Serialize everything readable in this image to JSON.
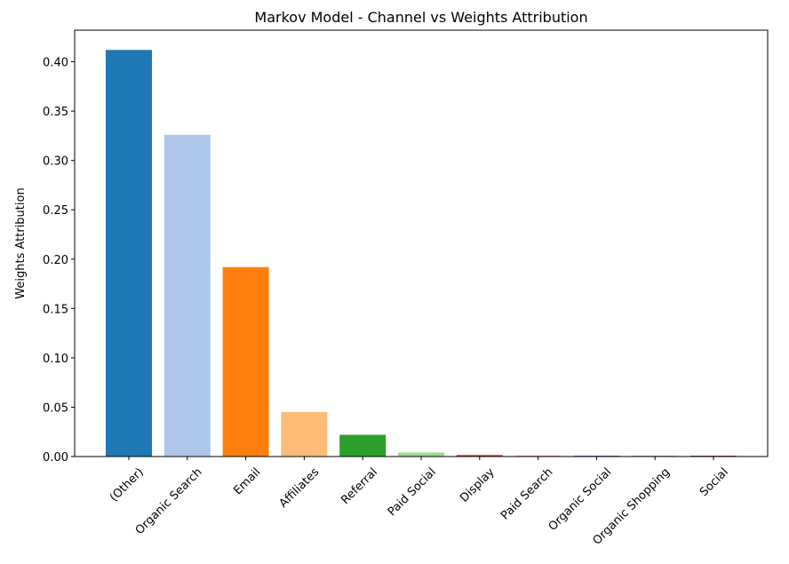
{
  "chart_data": {
    "type": "bar",
    "title": "Markov Model - Channel vs Weights Attribution",
    "xlabel": "",
    "ylabel": "Weights Attribution",
    "categories": [
      "(Other)",
      "Organic Search",
      "Email",
      "Affiliates",
      "Referral",
      "Paid Social",
      "Display",
      "Paid Search",
      "Organic Social",
      "Organic Shopping",
      "Social"
    ],
    "values": [
      0.412,
      0.326,
      0.192,
      0.045,
      0.022,
      0.004,
      0.0015,
      0.001,
      0.0003,
      0.0002,
      0.0001
    ],
    "colors": [
      "#1f77b4",
      "#aec7e8",
      "#ff7f0e",
      "#ffbb78",
      "#2ca02c",
      "#98df8a",
      "#d62728",
      "#ff9896",
      "#9467bd",
      "#c5b0d5",
      "#8c564b"
    ],
    "ylim": [
      0,
      0.432
    ],
    "yticks": [
      "0.00",
      "0.05",
      "0.10",
      "0.15",
      "0.20",
      "0.25",
      "0.30",
      "0.35",
      "0.40"
    ],
    "grid": false,
    "legend": "none"
  }
}
